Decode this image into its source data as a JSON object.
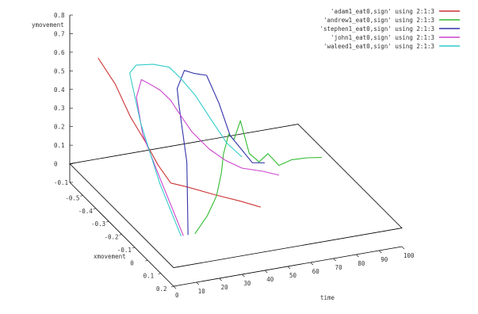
{
  "chart_data": {
    "type": "line3d",
    "xlabel": "time",
    "ylabel": "xmovement",
    "zlabel": "ymovement",
    "x_ticks": [
      "0",
      "10",
      "20",
      "30",
      "40",
      "50",
      "60",
      "70",
      "80",
      "90",
      "100"
    ],
    "y_ticks": [
      "-0.5",
      "-0.4",
      "-0.3",
      "-0.2",
      "-0.1",
      "0",
      "0.1",
      "0.2"
    ],
    "z_ticks": [
      "0.8",
      "0.7",
      "0.6",
      "0.5",
      "0.4",
      "0.3",
      "0.2",
      "0.1",
      "0",
      "-0.1"
    ],
    "xlim": [
      0,
      100
    ],
    "ylim": [
      -0.6,
      0.2
    ],
    "zlim": [
      -0.1,
      0.8
    ],
    "legend_position": "top-right",
    "series": [
      {
        "name": "'adam1_eat0,sign' using 2:1:3",
        "color": "#cc3333",
        "points": [
          [
            5,
            -0.47,
            0.65
          ],
          [
            12,
            -0.46,
            0.5
          ],
          [
            18,
            -0.45,
            0.32
          ],
          [
            24,
            -0.44,
            0.18
          ],
          [
            29,
            -0.43,
            0.05
          ],
          [
            34,
            -0.42,
            -0.05
          ],
          [
            40,
            -0.4,
            -0.07
          ],
          [
            48,
            -0.33,
            -0.08
          ],
          [
            56,
            -0.27,
            -0.09
          ],
          [
            62,
            -0.22,
            -0.1
          ]
        ]
      },
      {
        "name": "'andrew1_eat0,sign' using 2:1:3",
        "color": "#33bb33",
        "points": [
          [
            15,
            0.1,
            0.08
          ],
          [
            25,
            0.02,
            0.1
          ],
          [
            33,
            -0.05,
            0.14
          ],
          [
            38,
            -0.1,
            0.22
          ],
          [
            40,
            -0.12,
            0.3
          ],
          [
            44,
            -0.15,
            0.38
          ],
          [
            48,
            -0.18,
            0.32
          ],
          [
            52,
            -0.2,
            0.4
          ],
          [
            57,
            -0.22,
            0.2
          ],
          [
            63,
            -0.25,
            0.12
          ],
          [
            68,
            -0.27,
            0.14
          ],
          [
            74,
            -0.29,
            0.05
          ],
          [
            80,
            -0.3,
            0.06
          ],
          [
            88,
            -0.32,
            0.04
          ],
          [
            95,
            -0.33,
            0.02
          ]
        ]
      },
      {
        "name": "'stephen1_eat0,sign' using 2:1:3",
        "color": "#3333aa",
        "points": [
          [
            12,
            0.1,
            0.08
          ],
          [
            20,
            -0.05,
            0.35
          ],
          [
            25,
            -0.2,
            0.55
          ],
          [
            30,
            -0.3,
            0.55
          ],
          [
            36,
            -0.35,
            0.6
          ],
          [
            42,
            -0.38,
            0.55
          ],
          [
            48,
            -0.39,
            0.52
          ],
          [
            54,
            -0.4,
            0.35
          ],
          [
            60,
            -0.42,
            0.15
          ],
          [
            66,
            -0.44,
            0.05
          ],
          [
            72,
            -0.46,
            -0.05
          ],
          [
            78,
            -0.47,
            -0.07
          ]
        ]
      },
      {
        "name": "'john1_eat0,sign' using 2:1:3",
        "color": "#cc44cc",
        "points": [
          [
            10,
            0.1,
            0.08
          ],
          [
            11,
            -0.1,
            0.25
          ],
          [
            12,
            -0.25,
            0.38
          ],
          [
            15,
            -0.35,
            0.5
          ],
          [
            20,
            -0.4,
            0.55
          ],
          [
            25,
            -0.42,
            0.5
          ],
          [
            30,
            -0.43,
            0.45
          ],
          [
            35,
            -0.44,
            0.38
          ],
          [
            40,
            -0.45,
            0.28
          ],
          [
            45,
            -0.45,
            0.18
          ],
          [
            52,
            -0.44,
            0.08
          ],
          [
            58,
            -0.42,
            0.02
          ],
          [
            64,
            -0.4,
            -0.02
          ],
          [
            72,
            -0.38,
            -0.04
          ],
          [
            78,
            -0.36,
            -0.06
          ]
        ]
      },
      {
        "name": "'waleed1_eat0,sign' using 2:1:3",
        "color": "#33cccc",
        "points": [
          [
            9,
            0.1,
            0.08
          ],
          [
            11,
            -0.1,
            0.22
          ],
          [
            14,
            -0.3,
            0.4
          ],
          [
            16,
            -0.42,
            0.58
          ],
          [
            20,
            -0.44,
            0.6
          ],
          [
            28,
            -0.45,
            0.58
          ],
          [
            35,
            -0.45,
            0.55
          ],
          [
            40,
            -0.45,
            0.48
          ],
          [
            46,
            -0.44,
            0.38
          ],
          [
            52,
            -0.43,
            0.25
          ],
          [
            58,
            -0.41,
            0.12
          ],
          [
            64,
            -0.4,
            0.04
          ]
        ]
      }
    ]
  }
}
